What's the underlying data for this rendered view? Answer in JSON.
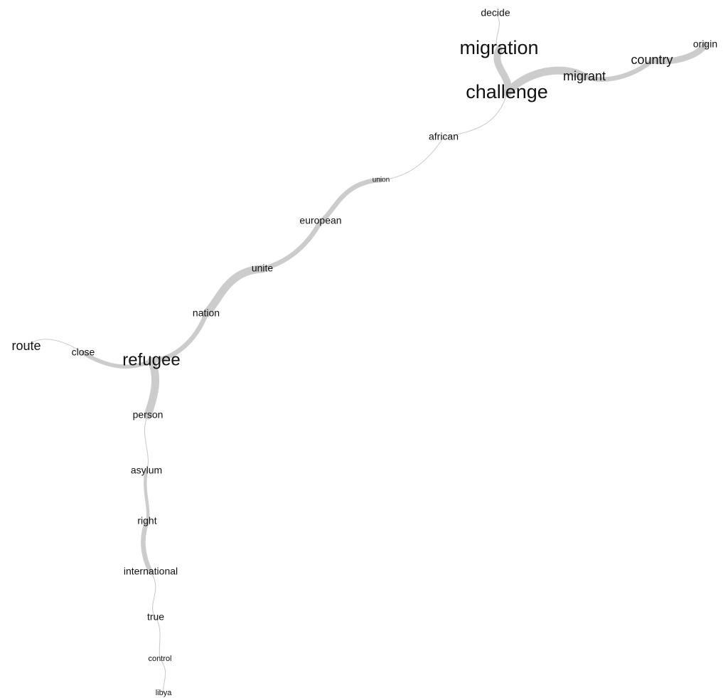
{
  "network": {
    "nodes": [
      {
        "id": "decide",
        "label": "decide"
      },
      {
        "id": "migration",
        "label": "migration"
      },
      {
        "id": "challenge",
        "label": "challenge"
      },
      {
        "id": "migrant",
        "label": "migrant"
      },
      {
        "id": "country",
        "label": "country"
      },
      {
        "id": "origin",
        "label": "origin"
      },
      {
        "id": "african",
        "label": "african"
      },
      {
        "id": "union",
        "label": "union"
      },
      {
        "id": "european",
        "label": "european"
      },
      {
        "id": "unite",
        "label": "unite"
      },
      {
        "id": "nation",
        "label": "nation"
      },
      {
        "id": "route",
        "label": "route"
      },
      {
        "id": "close",
        "label": "close"
      },
      {
        "id": "refugee",
        "label": "refugee"
      },
      {
        "id": "person",
        "label": "person"
      },
      {
        "id": "asylum",
        "label": "asylum"
      },
      {
        "id": "right",
        "label": "right"
      },
      {
        "id": "international",
        "label": "international"
      },
      {
        "id": "true",
        "label": "true"
      },
      {
        "id": "control",
        "label": "control"
      },
      {
        "id": "libya",
        "label": "libya"
      }
    ],
    "edges": [
      {
        "from": "decide",
        "to": "migration",
        "weight": 1
      },
      {
        "from": "migration",
        "to": "challenge",
        "weight": 9
      },
      {
        "from": "challenge",
        "to": "migrant",
        "weight": 10
      },
      {
        "from": "migrant",
        "to": "country",
        "weight": 6
      },
      {
        "from": "country",
        "to": "origin",
        "weight": 8
      },
      {
        "from": "challenge",
        "to": "african",
        "weight": 1
      },
      {
        "from": "african",
        "to": "union",
        "weight": 1
      },
      {
        "from": "union",
        "to": "european",
        "weight": 6
      },
      {
        "from": "european",
        "to": "unite",
        "weight": 6
      },
      {
        "from": "unite",
        "to": "nation",
        "weight": 10
      },
      {
        "from": "nation",
        "to": "refugee",
        "weight": 6
      },
      {
        "from": "route",
        "to": "close",
        "weight": 1
      },
      {
        "from": "close",
        "to": "refugee",
        "weight": 5
      },
      {
        "from": "refugee",
        "to": "person",
        "weight": 10
      },
      {
        "from": "person",
        "to": "asylum",
        "weight": 1
      },
      {
        "from": "asylum",
        "to": "right",
        "weight": 4
      },
      {
        "from": "right",
        "to": "international",
        "weight": 6
      },
      {
        "from": "international",
        "to": "true",
        "weight": 1
      },
      {
        "from": "true",
        "to": "control",
        "weight": 1
      },
      {
        "from": "control",
        "to": "libya",
        "weight": 1
      }
    ]
  }
}
